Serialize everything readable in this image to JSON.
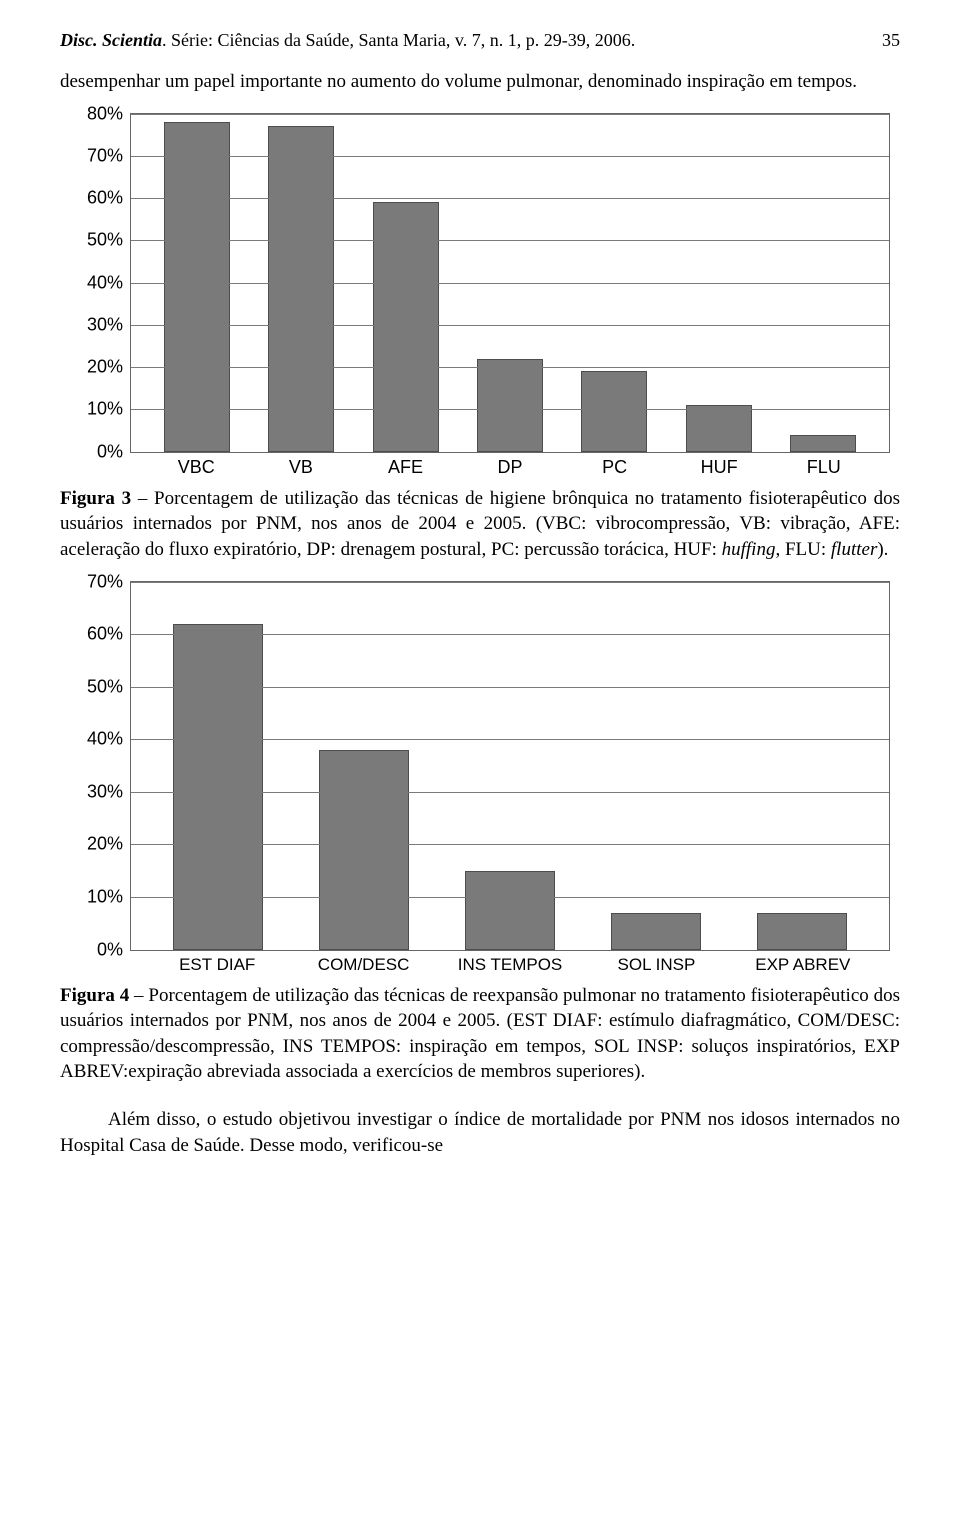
{
  "header": {
    "journal_italic": "Disc. Scientia",
    "journal_rest": ". Série: Ciências da Saúde, Santa Maria, v. 7, n. 1, p. 29-39, 2006.",
    "page_number": "35"
  },
  "paragraph_top": "desempenhar um papel importante no aumento do volume pulmonar, denominado inspiração em tempos.",
  "chart1": {
    "type": "bar",
    "categories": [
      "VBC",
      "VB",
      "AFE",
      "DP",
      "PC",
      "HUF",
      "FLU"
    ],
    "values": [
      78,
      77,
      59,
      22,
      19,
      11,
      4
    ],
    "ylim": [
      0,
      80
    ],
    "ytick_step": 10,
    "yticks": [
      "0%",
      "10%",
      "20%",
      "30%",
      "40%",
      "50%",
      "60%",
      "70%",
      "80%"
    ],
    "bar_color": "#7a7a7a",
    "bar_border": "#4d4d4d",
    "grid_color": "#7a7a7a",
    "border_color": "#666666",
    "background_color": "#ffffff",
    "label_fontsize": 18,
    "font_family": "Arial",
    "bar_width": 0.62
  },
  "caption1": {
    "label": "Figura 3",
    "text_part1": " – Porcentagem de utilização das técnicas de higiene brônquica no tratamento fisioterapêutico dos usuários internados por PNM, nos anos de 2004 e 2005. (VBC: vibrocompressão, VB: vibração, AFE: aceleração do fluxo expiratório, DP: drenagem postural, PC: percussão torácica, HUF: ",
    "italic1": "huffing",
    "text_part2": ", FLU: ",
    "italic2": "flutter",
    "text_part3": ")."
  },
  "chart2": {
    "type": "bar",
    "categories": [
      "EST DIAF",
      "COM/DESC",
      "INS TEMPOS",
      "SOL INSP",
      "EXP ABREV"
    ],
    "values": [
      62,
      38,
      15,
      7,
      7
    ],
    "ylim": [
      0,
      70
    ],
    "ytick_step": 10,
    "yticks": [
      "0%",
      "10%",
      "20%",
      "30%",
      "40%",
      "50%",
      "60%",
      "70%"
    ],
    "bar_color": "#7a7a7a",
    "bar_border": "#4d4d4d",
    "grid_color": "#7a7a7a",
    "border_color": "#666666",
    "background_color": "#ffffff",
    "label_fontsize": 18,
    "font_family": "Arial",
    "bar_width": 0.55
  },
  "caption2": {
    "label": "Figura 4",
    "text": " – Porcentagem de utilização das técnicas de reexpansão pulmonar no tratamento fisioterapêutico dos usuários internados por PNM, nos anos de 2004 e 2005. (EST DIAF: estímulo diafragmático, COM/DESC: compressão/descompressão, INS TEMPOS: inspiração em tempos, SOL INSP: soluços inspiratórios, EXP ABREV:expiração abreviada associada a exercícios de membros superiores)."
  },
  "paragraph_bottom": "Além disso, o estudo objetivou investigar o índice de mortalidade por PNM nos idosos internados no Hospital Casa de Saúde. Desse modo, verificou-se"
}
